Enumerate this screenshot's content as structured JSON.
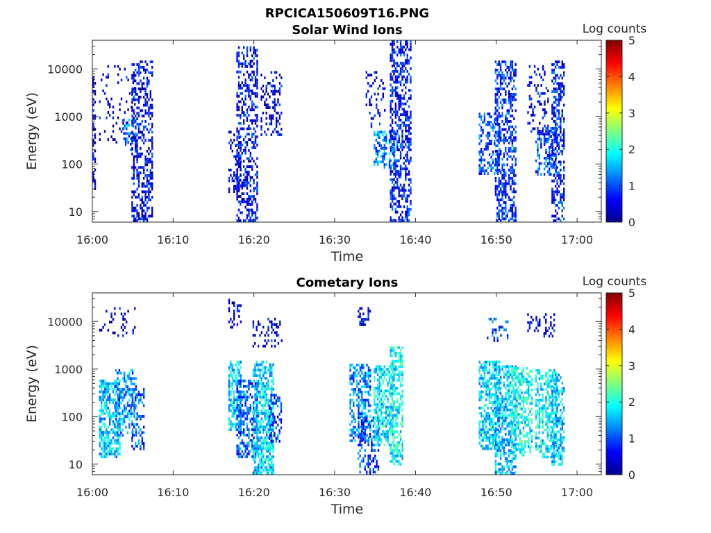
{
  "figure_title": "RPCICA150609T16.PNG",
  "colorbar": {
    "label": "Log counts",
    "min": 0,
    "max": 5,
    "ticks": [
      "0",
      "1",
      "2",
      "3",
      "4",
      "5"
    ],
    "colormap": "jet"
  },
  "chart_data": [
    {
      "type": "heatmap",
      "title": "Solar Wind Ions",
      "xlabel": "Time",
      "ylabel": "Energy (eV)",
      "yscale": "log",
      "xlim": [
        "16:00",
        "17:03"
      ],
      "ylim": [
        6,
        40000
      ],
      "x_ticks": [
        "16:00",
        "16:10",
        "16:20",
        "16:30",
        "16:40",
        "16:50",
        "17:00"
      ],
      "y_ticks": [
        "10",
        "100",
        "1000",
        "10000"
      ],
      "grid": false,
      "clusters": [
        {
          "t0": "16:00",
          "t1": "16:00",
          "e0": 25,
          "e1": 9000,
          "log_counts": 0.4,
          "density": 0.35
        },
        {
          "t0": "16:01",
          "t1": "16:05",
          "e0": 300,
          "e1": 12000,
          "log_counts": 0.5,
          "density": 0.12
        },
        {
          "t0": "16:04",
          "t1": "16:05",
          "e0": 200,
          "e1": 900,
          "log_counts": 1.2,
          "density": 0.35
        },
        {
          "t0": "16:05",
          "t1": "16:07",
          "e0": 6,
          "e1": 15000,
          "log_counts": 0.6,
          "density": 0.45
        },
        {
          "t0": "16:17",
          "t1": "16:18",
          "e0": 25,
          "e1": 500,
          "log_counts": 0.5,
          "density": 0.3
        },
        {
          "t0": "16:18",
          "t1": "16:20",
          "e0": 6,
          "e1": 30000,
          "log_counts": 0.6,
          "density": 0.45
        },
        {
          "t0": "16:21",
          "t1": "16:23",
          "e0": 400,
          "e1": 9000,
          "log_counts": 0.5,
          "density": 0.3
        },
        {
          "t0": "16:34",
          "t1": "16:36",
          "e0": 600,
          "e1": 9000,
          "log_counts": 0.5,
          "density": 0.2
        },
        {
          "t0": "16:35",
          "t1": "16:37",
          "e0": 80,
          "e1": 500,
          "log_counts": 1.3,
          "density": 0.55
        },
        {
          "t0": "16:37",
          "t1": "16:39",
          "e0": 6,
          "e1": 40000,
          "log_counts": 0.7,
          "density": 0.5
        },
        {
          "t0": "16:48",
          "t1": "16:50",
          "e0": 60,
          "e1": 1200,
          "log_counts": 1.0,
          "density": 0.45
        },
        {
          "t0": "16:50",
          "t1": "16:52",
          "e0": 6,
          "e1": 15000,
          "log_counts": 0.8,
          "density": 0.5
        },
        {
          "t0": "16:54",
          "t1": "16:56",
          "e0": 400,
          "e1": 12000,
          "log_counts": 0.5,
          "density": 0.2
        },
        {
          "t0": "16:55",
          "t1": "16:57",
          "e0": 60,
          "e1": 600,
          "log_counts": 1.0,
          "density": 0.45
        },
        {
          "t0": "16:57",
          "t1": "16:58",
          "e0": 6,
          "e1": 15000,
          "log_counts": 0.7,
          "density": 0.5
        }
      ]
    },
    {
      "type": "heatmap",
      "title": "Cometary Ions",
      "xlabel": "Time",
      "ylabel": "Energy (eV)",
      "yscale": "log",
      "xlim": [
        "16:00",
        "17:03"
      ],
      "ylim": [
        6,
        40000
      ],
      "x_ticks": [
        "16:00",
        "16:10",
        "16:20",
        "16:30",
        "16:40",
        "16:50",
        "17:00"
      ],
      "y_ticks": [
        "10",
        "100",
        "1000",
        "10000"
      ],
      "grid": false,
      "clusters": [
        {
          "t0": "16:01",
          "t1": "16:03",
          "e0": 15,
          "e1": 600,
          "log_counts": 1.6,
          "density": 0.6
        },
        {
          "t0": "16:01",
          "t1": "16:05",
          "e0": 5000,
          "e1": 20000,
          "log_counts": 0.4,
          "density": 0.15
        },
        {
          "t0": "16:03",
          "t1": "16:05",
          "e0": 40,
          "e1": 1000,
          "log_counts": 1.3,
          "density": 0.45
        },
        {
          "t0": "16:05",
          "t1": "16:06",
          "e0": 20,
          "e1": 400,
          "log_counts": 1.0,
          "density": 0.45
        },
        {
          "t0": "16:17",
          "t1": "16:18",
          "e0": 50,
          "e1": 1500,
          "log_counts": 1.7,
          "density": 0.55
        },
        {
          "t0": "16:18",
          "t1": "16:20",
          "e0": 15,
          "e1": 600,
          "log_counts": 1.1,
          "density": 0.5
        },
        {
          "t0": "16:17",
          "t1": "16:18",
          "e0": 8000,
          "e1": 30000,
          "log_counts": 0.4,
          "density": 0.3
        },
        {
          "t0": "16:20",
          "t1": "16:22",
          "e0": 6,
          "e1": 1500,
          "log_counts": 1.7,
          "density": 0.6
        },
        {
          "t0": "16:20",
          "t1": "16:23",
          "e0": 3000,
          "e1": 12000,
          "log_counts": 0.5,
          "density": 0.25
        },
        {
          "t0": "16:22",
          "t1": "16:23",
          "e0": 30,
          "e1": 300,
          "log_counts": 0.9,
          "density": 0.4
        },
        {
          "t0": "16:32",
          "t1": "16:34",
          "e0": 30,
          "e1": 1300,
          "log_counts": 1.3,
          "density": 0.5
        },
        {
          "t0": "16:33",
          "t1": "16:35",
          "e0": 6,
          "e1": 100,
          "log_counts": 0.9,
          "density": 0.35
        },
        {
          "t0": "16:33",
          "t1": "16:34",
          "e0": 8000,
          "e1": 20000,
          "log_counts": 0.5,
          "density": 0.35
        },
        {
          "t0": "16:35",
          "t1": "16:37",
          "e0": 25,
          "e1": 1200,
          "log_counts": 1.8,
          "density": 0.55
        },
        {
          "t0": "16:37",
          "t1": "16:38",
          "e0": 10,
          "e1": 3000,
          "log_counts": 1.9,
          "density": 0.6
        },
        {
          "t0": "16:48",
          "t1": "16:50",
          "e0": 20,
          "e1": 1500,
          "log_counts": 1.7,
          "density": 0.6
        },
        {
          "t0": "16:49",
          "t1": "16:51",
          "e0": 4000,
          "e1": 12000,
          "log_counts": 1.0,
          "density": 0.35
        },
        {
          "t0": "16:50",
          "t1": "16:52",
          "e0": 6,
          "e1": 1200,
          "log_counts": 1.6,
          "density": 0.55
        },
        {
          "t0": "16:52",
          "t1": "16:54",
          "e0": 15,
          "e1": 1100,
          "log_counts": 1.9,
          "density": 0.55
        },
        {
          "t0": "16:54",
          "t1": "16:55",
          "e0": 6000,
          "e1": 15000,
          "log_counts": 0.5,
          "density": 0.3
        },
        {
          "t0": "16:55",
          "t1": "16:57",
          "e0": 15,
          "e1": 1000,
          "log_counts": 1.8,
          "density": 0.55
        },
        {
          "t0": "16:56",
          "t1": "16:57",
          "e0": 5000,
          "e1": 15000,
          "log_counts": 0.5,
          "density": 0.3
        },
        {
          "t0": "16:57",
          "t1": "16:58",
          "e0": 10,
          "e1": 800,
          "log_counts": 1.6,
          "density": 0.5
        }
      ]
    }
  ]
}
